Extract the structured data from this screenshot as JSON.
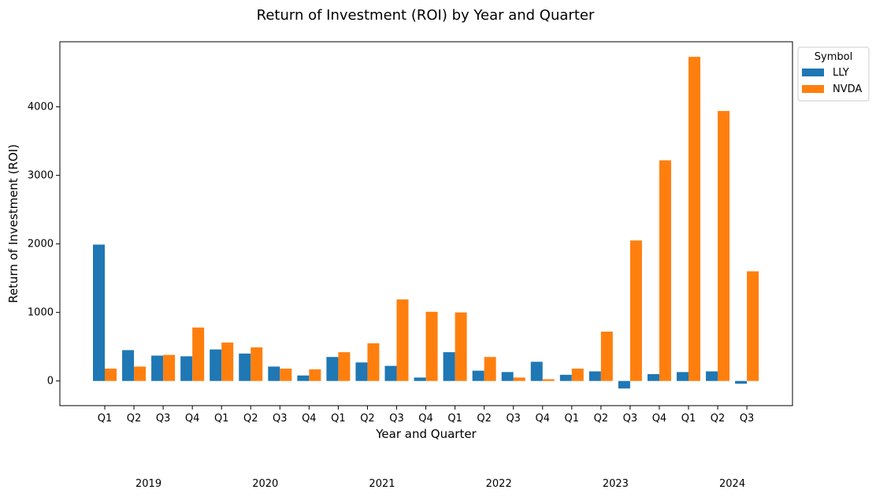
{
  "chart_data": {
    "type": "bar",
    "title": "Return of Investment (ROI) by Year and Quarter",
    "xlabel": "Year and Quarter",
    "ylabel": "Return of Investment (ROI)",
    "categories": [
      "Q1",
      "Q2",
      "Q3",
      "Q4",
      "Q1",
      "Q2",
      "Q3",
      "Q4",
      "Q1",
      "Q2",
      "Q3",
      "Q4",
      "Q1",
      "Q2",
      "Q3",
      "Q4",
      "Q1",
      "Q2",
      "Q3",
      "Q4",
      "Q1",
      "Q2",
      "Q3"
    ],
    "years": [
      "2019",
      "2020",
      "2021",
      "2022",
      "2023",
      "2024"
    ],
    "series": [
      {
        "name": "LLY",
        "color": "#1f77b4",
        "values": [
          1990,
          450,
          370,
          360,
          460,
          400,
          210,
          80,
          350,
          270,
          220,
          50,
          420,
          150,
          130,
          280,
          90,
          140,
          -110,
          100,
          130,
          140,
          -40
        ]
      },
      {
        "name": "NVDA",
        "color": "#ff7f0e",
        "values": [
          180,
          210,
          380,
          780,
          560,
          490,
          180,
          170,
          420,
          550,
          1190,
          1010,
          1000,
          350,
          50,
          25,
          180,
          720,
          2050,
          3220,
          4730,
          3940,
          1600
        ]
      }
    ],
    "ylim": [
      -360,
      4950
    ],
    "yticks": [
      0,
      1000,
      2000,
      3000,
      4000
    ],
    "legend": {
      "title": "Symbol",
      "position": "upper-right-outside"
    },
    "grid": false
  }
}
